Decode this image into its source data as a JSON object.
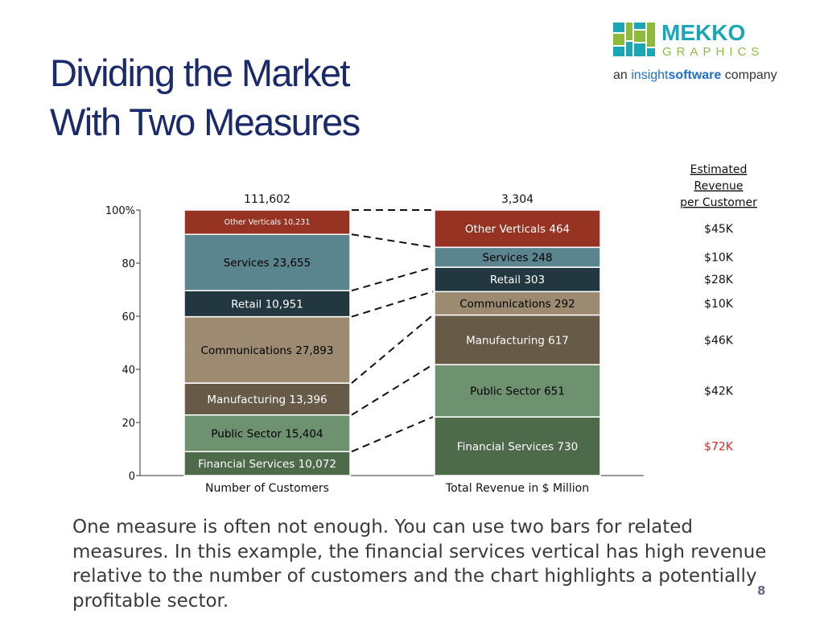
{
  "slide": {
    "title_line1": "Dividing the Market",
    "title_line2": "With Two Measures",
    "body": "One measure is often not enough.  You can use two bars for related measures. In this example, the financial services vertical has high revenue relative to the number of customers and the chart highlights a potentially profitable sector.",
    "page_number": "8"
  },
  "logo": {
    "word1": "MEKKO",
    "word2": "GRAPHICS",
    "tagline_prefix": "an",
    "tagline_brand_a": "insight",
    "tagline_brand_b": "software",
    "tagline_suffix": "company",
    "colors": {
      "mekko": "#1aa6b7",
      "graphics": "#8dbb3c",
      "tagline": "#333333",
      "brand": "#1f6fd1"
    }
  },
  "chart_data": {
    "type": "bar",
    "stacked": "percent",
    "yticks": [
      "0",
      "20",
      "40",
      "60",
      "80",
      "100%"
    ],
    "ylim": [
      0,
      100
    ],
    "bars": [
      {
        "category": "Number of Customers",
        "total_label": "111,602"
      },
      {
        "category": "Total Revenue in $ Million",
        "total_label": "3,304"
      }
    ],
    "segments": [
      {
        "name": "Financial Services",
        "values": [
          10072,
          730
        ],
        "color": "#4d6b4a",
        "text_color": [
          "#ffffff",
          "#ffffff"
        ]
      },
      {
        "name": "Public Sector",
        "values": [
          15404,
          651
        ],
        "color": "#6e9270",
        "text_color": [
          "#000000",
          "#000000"
        ]
      },
      {
        "name": "Manufacturing",
        "values": [
          13396,
          617
        ],
        "color": "#675a47",
        "text_color": [
          "#ffffff",
          "#ffffff"
        ]
      },
      {
        "name": "Communications",
        "values": [
          27893,
          292
        ],
        "color": "#9c8b70",
        "text_color": [
          "#000000",
          "#000000"
        ]
      },
      {
        "name": "Retail",
        "values": [
          10951,
          303
        ],
        "color": "#22373f",
        "text_color": [
          "#ffffff",
          "#ffffff"
        ]
      },
      {
        "name": "Services",
        "values": [
          23655,
          248
        ],
        "color": "#5a858e",
        "text_color": [
          "#000000",
          "#000000"
        ]
      },
      {
        "name": "Other Verticals",
        "values": [
          10231,
          464
        ],
        "color": "#963323",
        "text_color": [
          "#ffffff",
          "#ffffff"
        ]
      }
    ],
    "segment_labels": [
      [
        "Financial Services 10,072",
        "Public Sector 15,404",
        "Manufacturing 13,396",
        "Communications 27,893",
        "Retail 10,951",
        "Services 23,655",
        "Other Verticals 10,231"
      ],
      [
        "Financial Services 730",
        "Public Sector 651",
        "Manufacturing 617",
        "Communications 292",
        "Retail 303",
        "Services 248",
        "Other Verticals 464"
      ]
    ],
    "estimated_revenue": {
      "header": [
        "Estimated",
        "Revenue",
        "per Customer"
      ],
      "values": [
        "$72K",
        "$42K",
        "$46K",
        "$10K",
        "$28K",
        "$10K",
        "$45K"
      ],
      "highlight_index": 0,
      "highlight_color": "#e8201a",
      "text_color": "#111111"
    }
  }
}
